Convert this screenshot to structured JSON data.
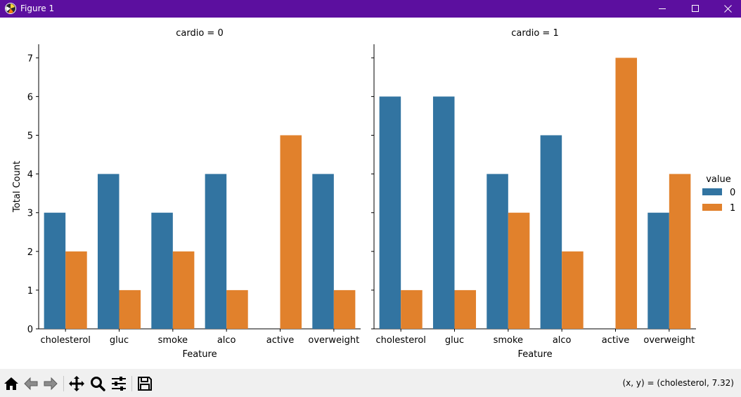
{
  "window": {
    "title": "Figure 1",
    "titlebar_color": "#5c0f9f",
    "icons": [
      "app-icon",
      "minimize-icon",
      "maximize-icon",
      "close-icon"
    ]
  },
  "toolbar": {
    "buttons": [
      "home-icon",
      "back-icon",
      "forward-icon",
      "pan-icon",
      "zoom-icon",
      "configure-subplots-icon",
      "save-icon"
    ],
    "coords_text": "(x, y) = (cholesterol, 7.32)"
  },
  "chart_data": [
    {
      "type": "bar",
      "title": "cardio = 0",
      "xlabel": "Feature",
      "ylabel": "Total Count",
      "categories": [
        "cholesterol",
        "gluc",
        "smoke",
        "alco",
        "active",
        "overweight"
      ],
      "ylim": [
        0,
        7.35
      ],
      "yticks": [
        0,
        1,
        2,
        3,
        4,
        5,
        6,
        7
      ],
      "series": [
        {
          "name": "0",
          "color": "#3274a1",
          "values": [
            3,
            4,
            3,
            4,
            0,
            4
          ]
        },
        {
          "name": "1",
          "color": "#e1812c",
          "values": [
            2,
            1,
            2,
            1,
            5,
            1
          ]
        }
      ]
    },
    {
      "type": "bar",
      "title": "cardio = 1",
      "xlabel": "Feature",
      "ylabel": "",
      "categories": [
        "cholesterol",
        "gluc",
        "smoke",
        "alco",
        "active",
        "overweight"
      ],
      "ylim": [
        0,
        7.35
      ],
      "yticks": [
        0,
        1,
        2,
        3,
        4,
        5,
        6,
        7
      ],
      "series": [
        {
          "name": "0",
          "color": "#3274a1",
          "values": [
            6,
            6,
            4,
            5,
            0,
            3
          ]
        },
        {
          "name": "1",
          "color": "#e1812c",
          "values": [
            1,
            1,
            3,
            2,
            7,
            4
          ]
        }
      ]
    }
  ],
  "legend": {
    "title": "value",
    "placement": "right",
    "entries": [
      {
        "label": "0",
        "color": "#3274a1"
      },
      {
        "label": "1",
        "color": "#e1812c"
      }
    ]
  }
}
